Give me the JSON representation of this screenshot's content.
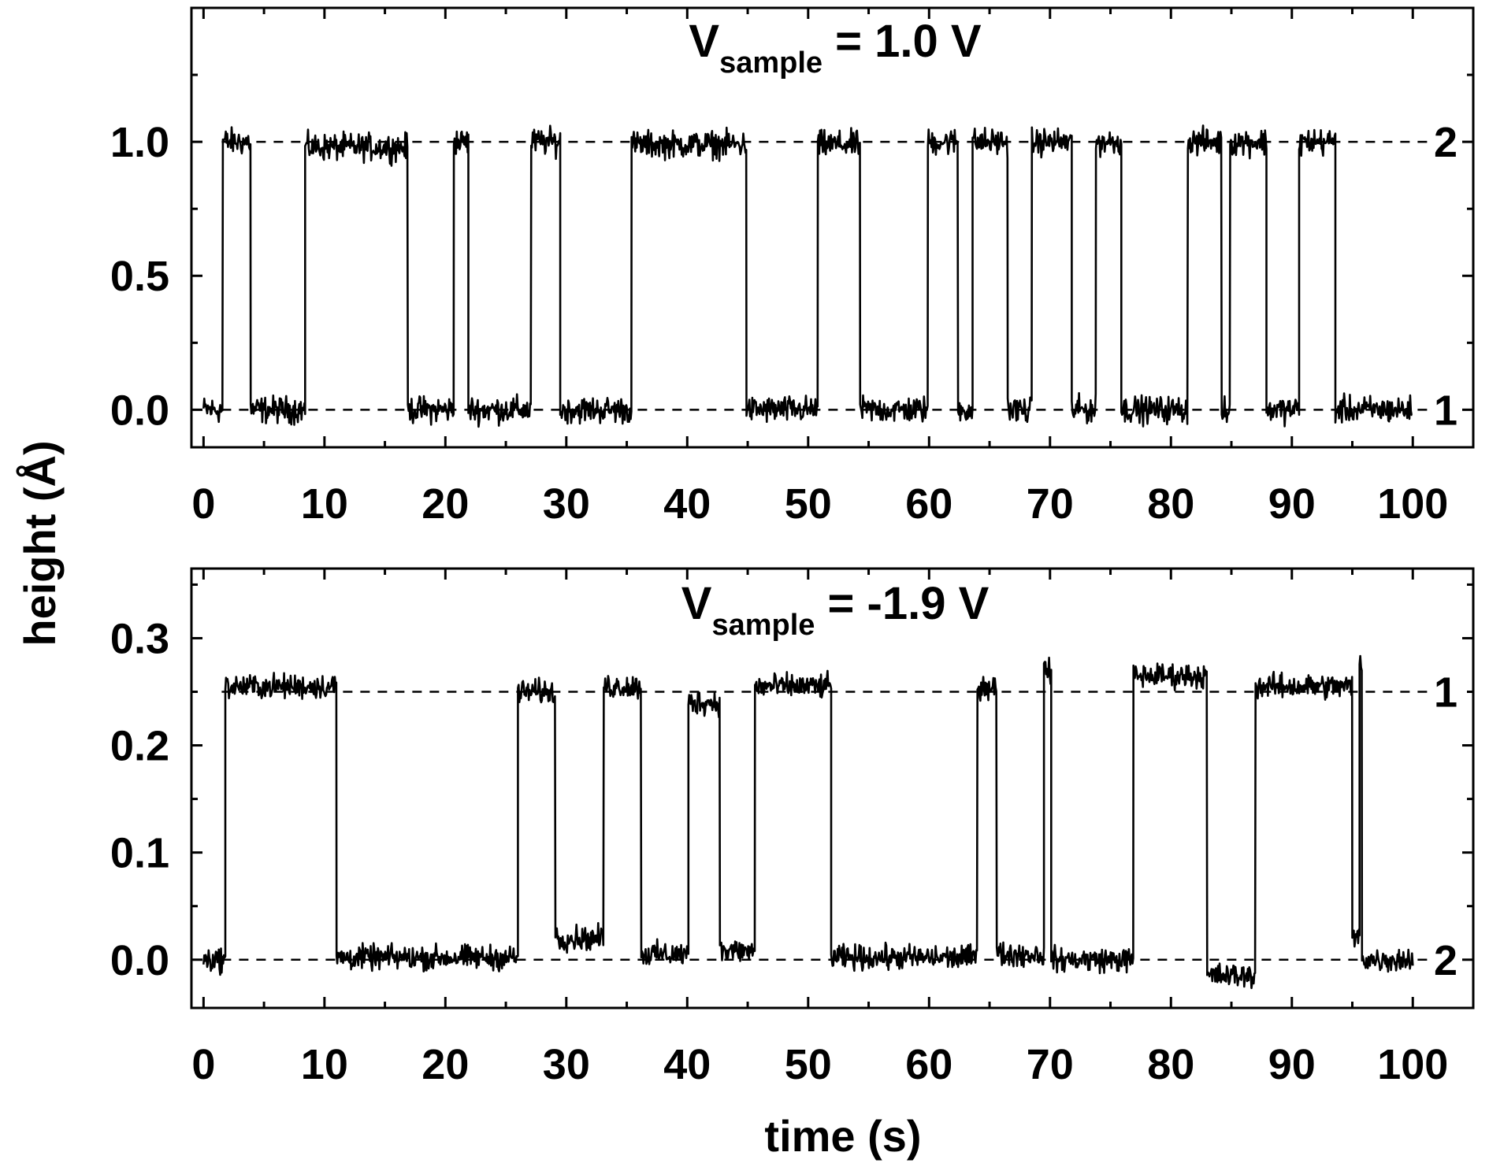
{
  "figure": {
    "ylabel": "height (Å)",
    "xlabel": "time (s)"
  },
  "chart_data": [
    {
      "type": "line",
      "title_main": "V",
      "title_sub": "sample",
      "title_rest": " = 1.0 V",
      "xlabel": "",
      "ylabel": "height (Å)",
      "xlim": [
        -1,
        105
      ],
      "ylim": [
        -0.14,
        1.5
      ],
      "x_ticks": [
        0,
        10,
        20,
        30,
        40,
        50,
        60,
        70,
        80,
        90,
        100
      ],
      "x_tick_labels": [
        "0",
        "10",
        "20",
        "30",
        "40",
        "50",
        "60",
        "70",
        "80",
        "90",
        "100"
      ],
      "y_ticks": [
        0.0,
        0.5,
        1.0
      ],
      "y_tick_labels": [
        "0.0",
        "0.5",
        "1.0"
      ],
      "grid": false,
      "levels": [
        {
          "value": 0.0,
          "label": "1",
          "style": "dashed"
        },
        {
          "value": 1.0,
          "label": "2",
          "style": "dashed"
        }
      ],
      "series": [
        {
          "noise": 0.035,
          "x_end": 100,
          "segments": [
            [
              0,
              1.6,
              0.0
            ],
            [
              1.6,
              3.9,
              1.0
            ],
            [
              3.9,
              8.4,
              0.0
            ],
            [
              8.4,
              16.9,
              0.98
            ],
            [
              16.9,
              20.7,
              0.0
            ],
            [
              20.7,
              21.9,
              1.0
            ],
            [
              21.9,
              27.1,
              0.0
            ],
            [
              27.1,
              29.5,
              1.0
            ],
            [
              29.5,
              35.4,
              0.0
            ],
            [
              35.4,
              44.9,
              0.99
            ],
            [
              44.9,
              50.8,
              0.0
            ],
            [
              50.8,
              54.3,
              0.99
            ],
            [
              54.3,
              59.9,
              0.0
            ],
            [
              59.9,
              62.4,
              1.0
            ],
            [
              62.4,
              63.6,
              0.0
            ],
            [
              63.6,
              66.5,
              1.0
            ],
            [
              66.5,
              68.5,
              0.0
            ],
            [
              68.5,
              71.8,
              1.0
            ],
            [
              71.8,
              73.8,
              0.0
            ],
            [
              73.8,
              75.9,
              1.0
            ],
            [
              75.9,
              81.4,
              0.0
            ],
            [
              81.4,
              84.2,
              1.0
            ],
            [
              84.2,
              84.9,
              0.0
            ],
            [
              84.9,
              87.9,
              1.0
            ],
            [
              87.9,
              90.6,
              0.0
            ],
            [
              90.6,
              93.6,
              1.0
            ],
            [
              93.6,
              100,
              0.0
            ]
          ]
        }
      ]
    },
    {
      "type": "line",
      "title_main": "V",
      "title_sub": "sample",
      "title_rest": " = -1.9 V",
      "xlabel": "time (s)",
      "ylabel": "height (Å)",
      "xlim": [
        -1,
        105
      ],
      "ylim": [
        -0.045,
        0.365
      ],
      "x_ticks": [
        0,
        10,
        20,
        30,
        40,
        50,
        60,
        70,
        80,
        90,
        100
      ],
      "x_tick_labels": [
        "0",
        "10",
        "20",
        "30",
        "40",
        "50",
        "60",
        "70",
        "80",
        "90",
        "100"
      ],
      "y_ticks": [
        0.0,
        0.1,
        0.2,
        0.3
      ],
      "y_tick_labels": [
        "0.0",
        "0.1",
        "0.2",
        "0.3"
      ],
      "grid": false,
      "levels": [
        {
          "value": 0.25,
          "label": "1",
          "style": "dashed"
        },
        {
          "value": 0.0,
          "label": "2",
          "style": "dashed"
        }
      ],
      "series": [
        {
          "noise": 0.008,
          "x_end": 100,
          "segments": [
            [
              0,
              1.8,
              0.0
            ],
            [
              1.8,
              11.0,
              0.255
            ],
            [
              11.0,
              26.0,
              0.002
            ],
            [
              26.0,
              29.1,
              0.25
            ],
            [
              29.1,
              33.1,
              0.02
            ],
            [
              33.1,
              36.2,
              0.255
            ],
            [
              36.2,
              40.1,
              0.005
            ],
            [
              40.1,
              42.7,
              0.24
            ],
            [
              42.7,
              45.6,
              0.008
            ],
            [
              45.6,
              51.9,
              0.255
            ],
            [
              51.9,
              64.0,
              0.002
            ],
            [
              64.0,
              65.6,
              0.255
            ],
            [
              65.6,
              69.5,
              0.005
            ],
            [
              69.5,
              70.1,
              0.27
            ],
            [
              70.1,
              76.9,
              0.0
            ],
            [
              76.9,
              83.0,
              0.265
            ],
            [
              83.0,
              87.0,
              -0.015
            ],
            [
              87.0,
              95.0,
              0.255
            ],
            [
              95.0,
              95.6,
              0.02
            ],
            [
              95.6,
              95.8,
              0.28
            ],
            [
              95.8,
              100,
              0.0
            ]
          ]
        }
      ]
    }
  ]
}
